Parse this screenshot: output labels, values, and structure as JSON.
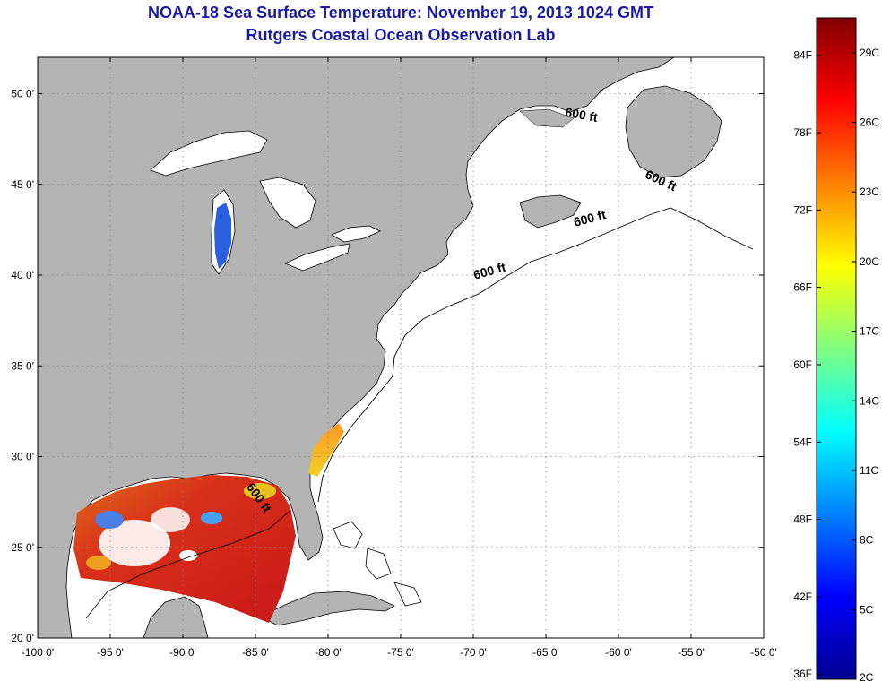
{
  "title": "NOAA-18 Sea Surface Temperature:  November 19, 2013 1024 GMT",
  "subtitle": "Rutgers Coastal Ocean Observation Lab",
  "map": {
    "lon_range": [
      -100,
      -50
    ],
    "lat_range": [
      20,
      52
    ],
    "lon_ticks": [
      {
        "value": -100,
        "label": "-100 0'"
      },
      {
        "value": -95,
        "label": "-95 0'"
      },
      {
        "value": -90,
        "label": "-90 0'"
      },
      {
        "value": -85,
        "label": "-85 0'"
      },
      {
        "value": -80,
        "label": "-80 0'"
      },
      {
        "value": -75,
        "label": "-75 0'"
      },
      {
        "value": -70,
        "label": "-70 0'"
      },
      {
        "value": -65,
        "label": "-65 0'"
      },
      {
        "value": -60,
        "label": "-60 0'"
      },
      {
        "value": -55,
        "label": "-55 0'"
      },
      {
        "value": -50,
        "label": "-50 0'"
      }
    ],
    "lat_ticks": [
      {
        "value": 20,
        "label": "20 0'"
      },
      {
        "value": 25,
        "label": "25 0'"
      },
      {
        "value": 30,
        "label": "30 0'"
      },
      {
        "value": 35,
        "label": "35 0'"
      },
      {
        "value": 40,
        "label": "40 0'"
      },
      {
        "value": 45,
        "label": "45 0'"
      },
      {
        "value": 50,
        "label": "50 0'"
      }
    ],
    "isobath_label": "600 ft",
    "isobath_labels": [
      {
        "lon": -62.6,
        "lat": 48.6,
        "rot": 10
      },
      {
        "lon": -57.2,
        "lat": 45.0,
        "rot": 25
      },
      {
        "lon": -61.9,
        "lat": 42.9,
        "rot": -15
      },
      {
        "lon": -68.8,
        "lat": 40.0,
        "rot": -15
      },
      {
        "lon": -85.0,
        "lat": 27.6,
        "rot": 55
      }
    ],
    "colors": {
      "land": "#b4b4b4",
      "ocean": "#ffffff",
      "grid": "#888888",
      "coast": "#000000"
    }
  },
  "colorbar": {
    "f_ticks": [
      {
        "value": 84,
        "label": "84F"
      },
      {
        "value": 78,
        "label": "78F"
      },
      {
        "value": 72,
        "label": "72F"
      },
      {
        "value": 66,
        "label": "66F"
      },
      {
        "value": 60,
        "label": "60F"
      },
      {
        "value": 54,
        "label": "54F"
      },
      {
        "value": 48,
        "label": "48F"
      },
      {
        "value": 42,
        "label": "42F"
      },
      {
        "value": 36,
        "label": "36F"
      }
    ],
    "c_ticks": [
      {
        "value": 29,
        "label": "29C"
      },
      {
        "value": 26,
        "label": "26C"
      },
      {
        "value": 23,
        "label": "23C"
      },
      {
        "value": 20,
        "label": "20C"
      },
      {
        "value": 17,
        "label": "17C"
      },
      {
        "value": 14,
        "label": "14C"
      },
      {
        "value": 11,
        "label": "11C"
      },
      {
        "value": 8,
        "label": "8C"
      },
      {
        "value": 5,
        "label": "5C"
      },
      {
        "value": 2,
        "label": "2C"
      }
    ],
    "c_min": 2,
    "c_max": 30.5,
    "gradient": [
      "#00008f",
      "#0000ff",
      "#0080ff",
      "#00ffff",
      "#80ff80",
      "#ffff00",
      "#ff8000",
      "#ff0000",
      "#800000"
    ]
  }
}
